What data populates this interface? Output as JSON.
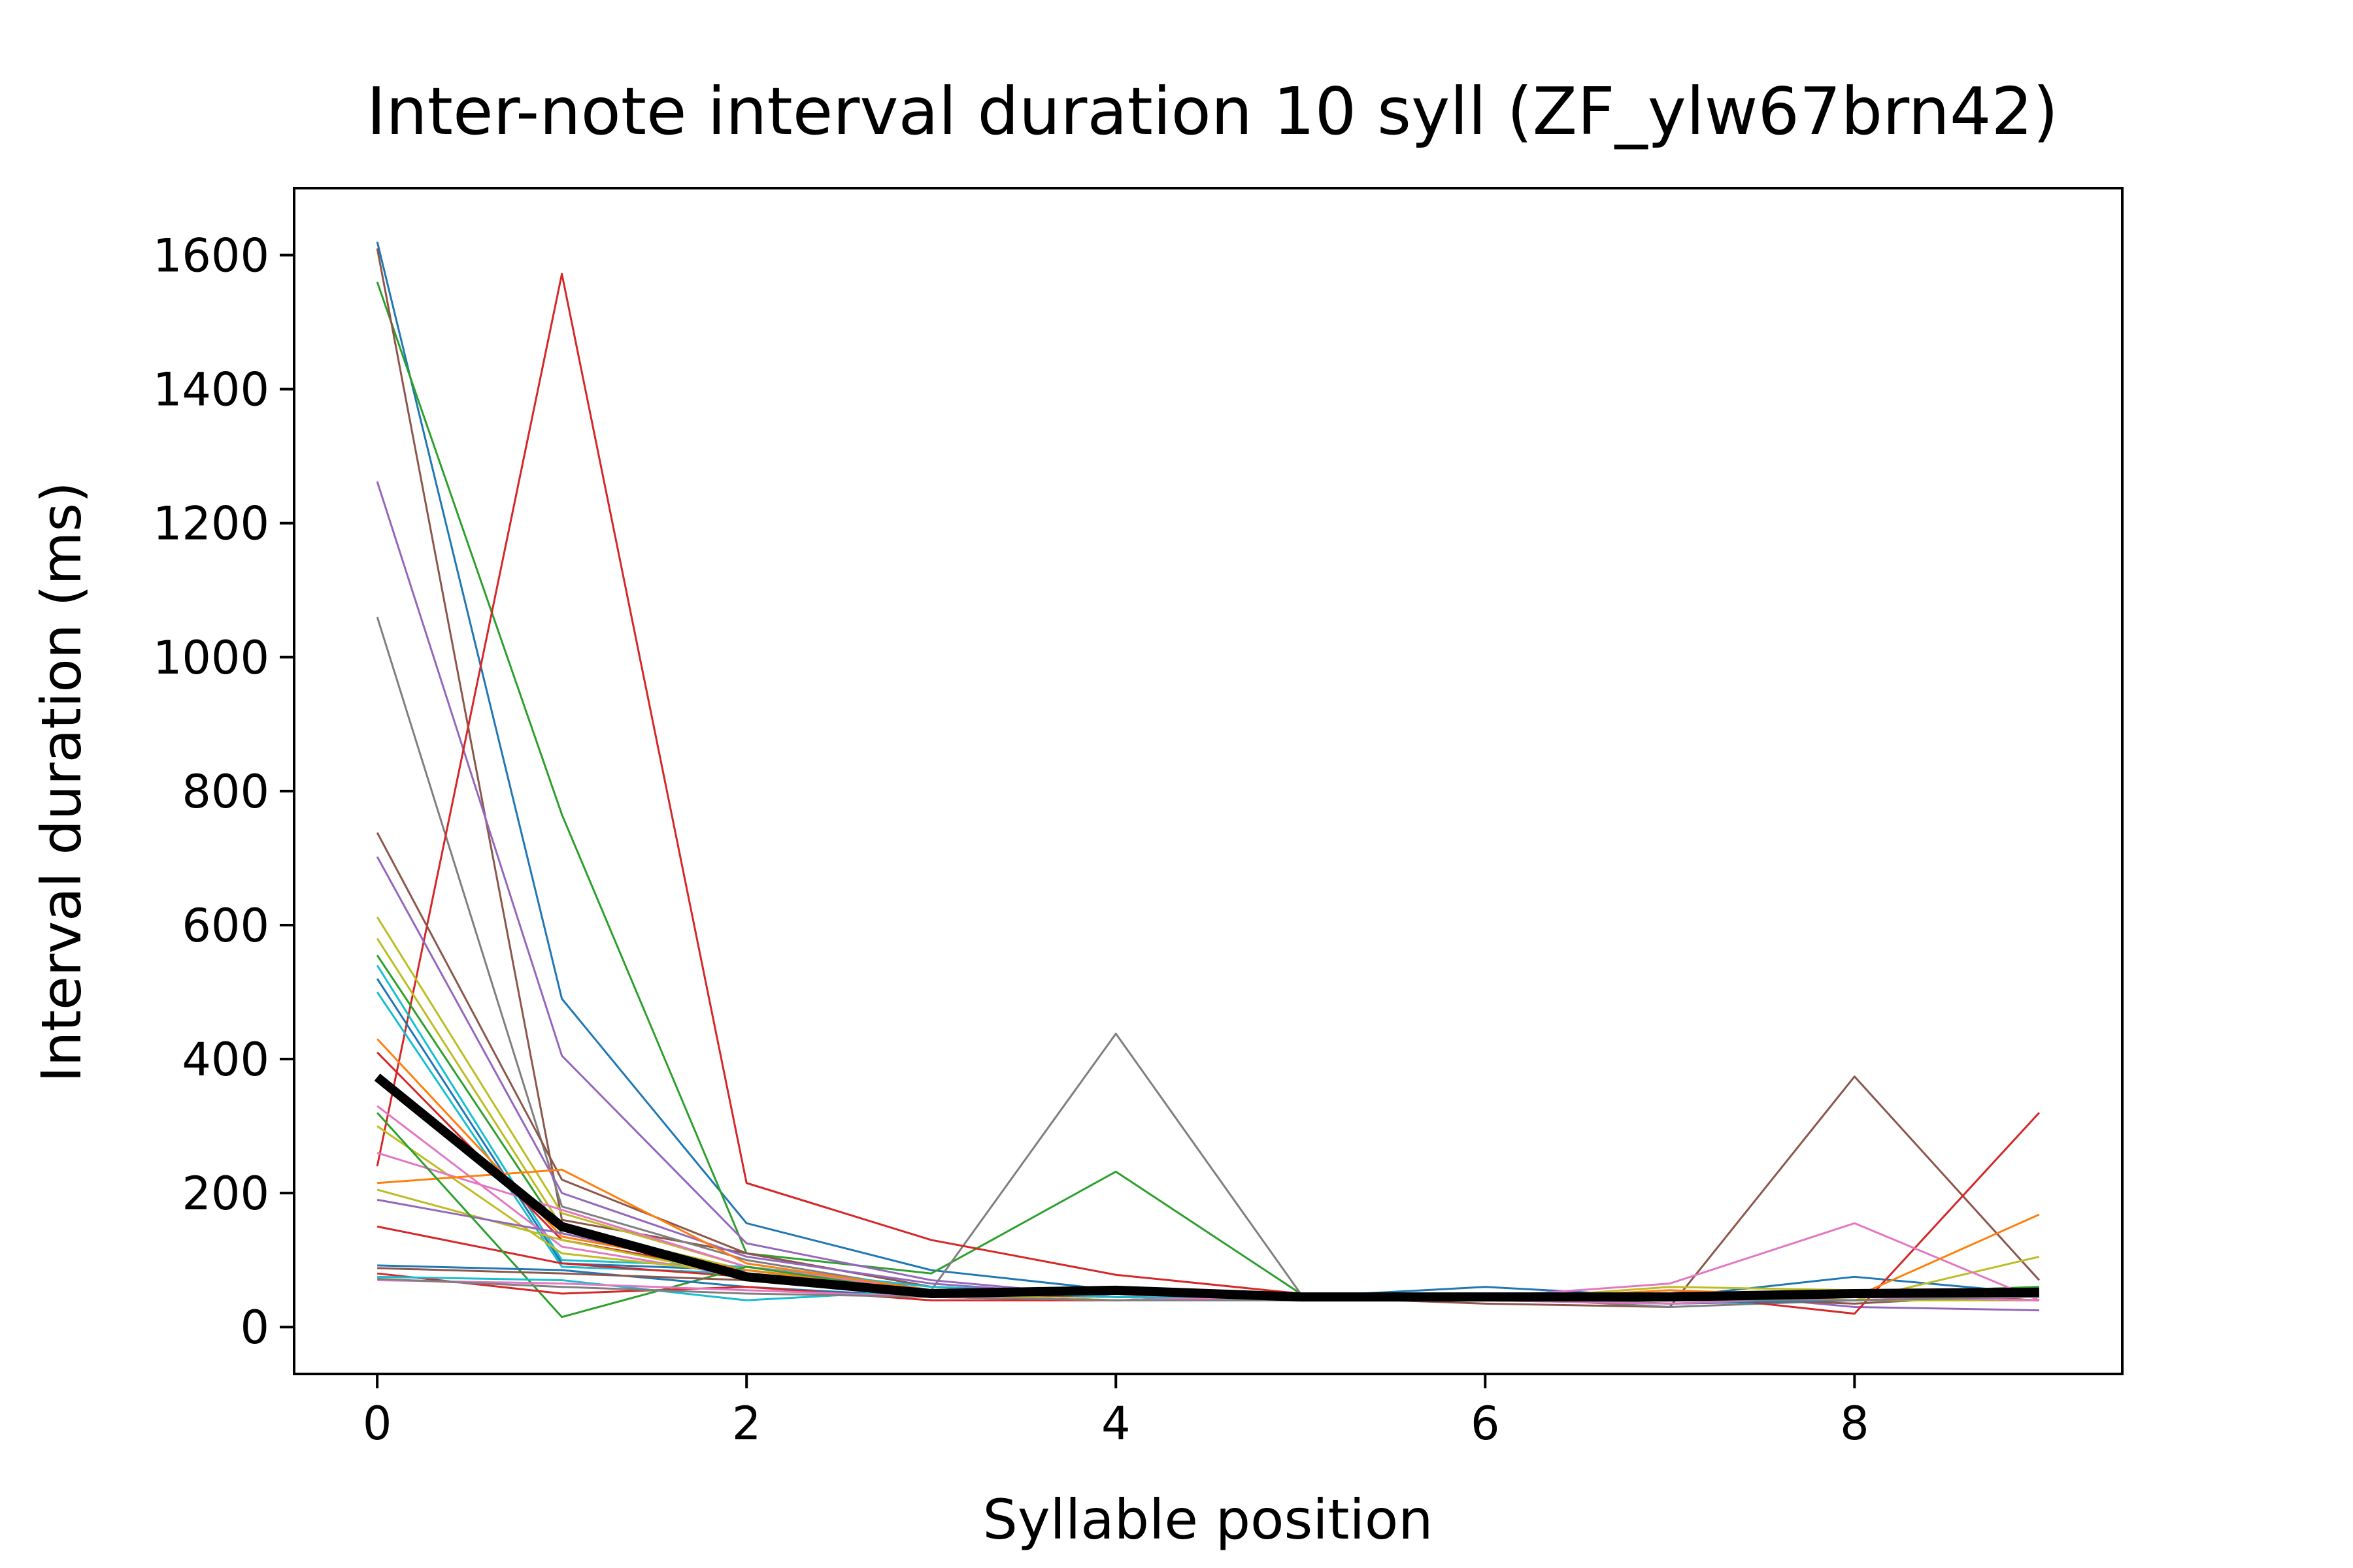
{
  "chart_data": {
    "type": "line",
    "title": "Inter-note interval duration 10 syll (ZF_ylw67brn42)",
    "xlabel": "Syllable position",
    "ylabel": "Interval duration (ms)",
    "xlim": [
      -0.45,
      9.45
    ],
    "ylim": [
      -70,
      1700
    ],
    "xticks": [
      0,
      2,
      4,
      6,
      8
    ],
    "yticks": [
      0,
      200,
      400,
      600,
      800,
      1000,
      1200,
      1400,
      1600
    ],
    "grid": false,
    "x": [
      0,
      1,
      2,
      3,
      4,
      5,
      6,
      7,
      8,
      9
    ],
    "series": [
      {
        "values": [
          1620,
          490,
          155,
          85,
          55,
          45,
          50,
          45,
          75,
          50
        ],
        "color": "#1f77b4"
      },
      {
        "values": [
          1560,
          765,
          110,
          80,
          232,
          50,
          45,
          40,
          50,
          60
        ],
        "color": "#2ca02c"
      },
      {
        "values": [
          1610,
          160,
          110,
          60,
          50,
          45,
          35,
          30,
          374,
          70
        ],
        "color": "#8c564b"
      },
      {
        "values": [
          1262,
          405,
          125,
          70,
          45,
          50,
          40,
          55,
          30,
          25
        ],
        "color": "#9467bd"
      },
      {
        "values": [
          1060,
          180,
          100,
          55,
          438,
          50,
          45,
          30,
          40,
          45
        ],
        "color": "#7f7f7f"
      },
      {
        "values": [
          240,
          1572,
          215,
          130,
          78,
          50,
          45,
          50,
          20,
          320
        ],
        "color": "#d62728"
      },
      {
        "values": [
          738,
          220,
          110,
          60,
          50,
          45,
          40,
          45,
          35,
          50
        ],
        "color": "#8c564b"
      },
      {
        "values": [
          702,
          200,
          105,
          65,
          45,
          50,
          40,
          40,
          45,
          55
        ],
        "color": "#9467bd"
      },
      {
        "values": [
          612,
          170,
          90,
          55,
          45,
          40,
          45,
          50,
          40,
          105
        ],
        "color": "#bcbd22"
      },
      {
        "values": [
          580,
          150,
          85,
          50,
          40,
          45,
          40,
          45,
          50,
          40
        ],
        "color": "#bcbd22"
      },
      {
        "values": [
          555,
          140,
          80,
          55,
          45,
          40,
          45,
          35,
          40,
          45
        ],
        "color": "#2ca02c"
      },
      {
        "values": [
          540,
          100,
          90,
          60,
          50,
          45,
          40,
          45,
          50,
          45
        ],
        "color": "#17becf"
      },
      {
        "values": [
          520,
          95,
          85,
          55,
          50,
          45,
          60,
          45,
          55,
          50
        ],
        "color": "#1f77b4"
      },
      {
        "values": [
          500,
          90,
          80,
          50,
          45,
          40,
          45,
          40,
          45,
          45
        ],
        "color": "#17becf"
      },
      {
        "values": [
          430,
          135,
          85,
          55,
          45,
          40,
          45,
          45,
          55,
          50
        ],
        "color": "#ff7f0e"
      },
      {
        "values": [
          410,
          130,
          80,
          50,
          45,
          40,
          40,
          45,
          50,
          45
        ],
        "color": "#d62728"
      },
      {
        "values": [
          330,
          120,
          75,
          50,
          45,
          40,
          45,
          40,
          45,
          40
        ],
        "color": "#e377c2"
      },
      {
        "values": [
          300,
          110,
          80,
          55,
          50,
          45,
          40,
          60,
          55,
          45
        ],
        "color": "#bcbd22"
      },
      {
        "values": [
          260,
          175,
          90,
          55,
          45,
          50,
          45,
          65,
          155,
          40
        ],
        "color": "#e377c2"
      },
      {
        "values": [
          215,
          235,
          95,
          55,
          50,
          45,
          40,
          55,
          45,
          168
        ],
        "color": "#ff7f0e"
      },
      {
        "values": [
          205,
          130,
          75,
          50,
          45,
          40,
          45,
          45,
          40,
          40
        ],
        "color": "#bcbd22"
      },
      {
        "values": [
          190,
          140,
          80,
          50,
          45,
          40,
          45,
          40,
          45,
          45
        ],
        "color": "#9467bd"
      },
      {
        "values": [
          150,
          95,
          75,
          45,
          40,
          45,
          40,
          45,
          50,
          40
        ],
        "color": "#d62728"
      },
      {
        "values": [
          320,
          15,
          90,
          50,
          45,
          40,
          45,
          40,
          50,
          45
        ],
        "color": "#2ca02c"
      },
      {
        "values": [
          92,
          85,
          60,
          45,
          40,
          45,
          40,
          35,
          40,
          45
        ],
        "color": "#1f77b4"
      },
      {
        "values": [
          88,
          80,
          70,
          50,
          45,
          40,
          45,
          40,
          45,
          40
        ],
        "color": "#8c564b"
      },
      {
        "values": [
          80,
          50,
          60,
          40,
          40,
          45,
          40,
          40,
          45,
          40
        ],
        "color": "#d62728"
      },
      {
        "values": [
          75,
          70,
          40,
          55,
          45,
          40,
          45,
          45,
          45,
          45
        ],
        "color": "#17becf"
      },
      {
        "values": [
          70,
          65,
          55,
          45,
          40,
          45,
          40,
          35,
          45,
          40
        ],
        "color": "#e377c2"
      },
      {
        "values": [
          72,
          60,
          50,
          45,
          40,
          40,
          45,
          40,
          40,
          45
        ],
        "color": "#7f7f7f"
      }
    ],
    "mean_series": {
      "values": [
        373,
        150,
        75,
        50,
        55,
        45,
        45,
        45,
        50,
        52
      ],
      "color": "#000000"
    }
  }
}
